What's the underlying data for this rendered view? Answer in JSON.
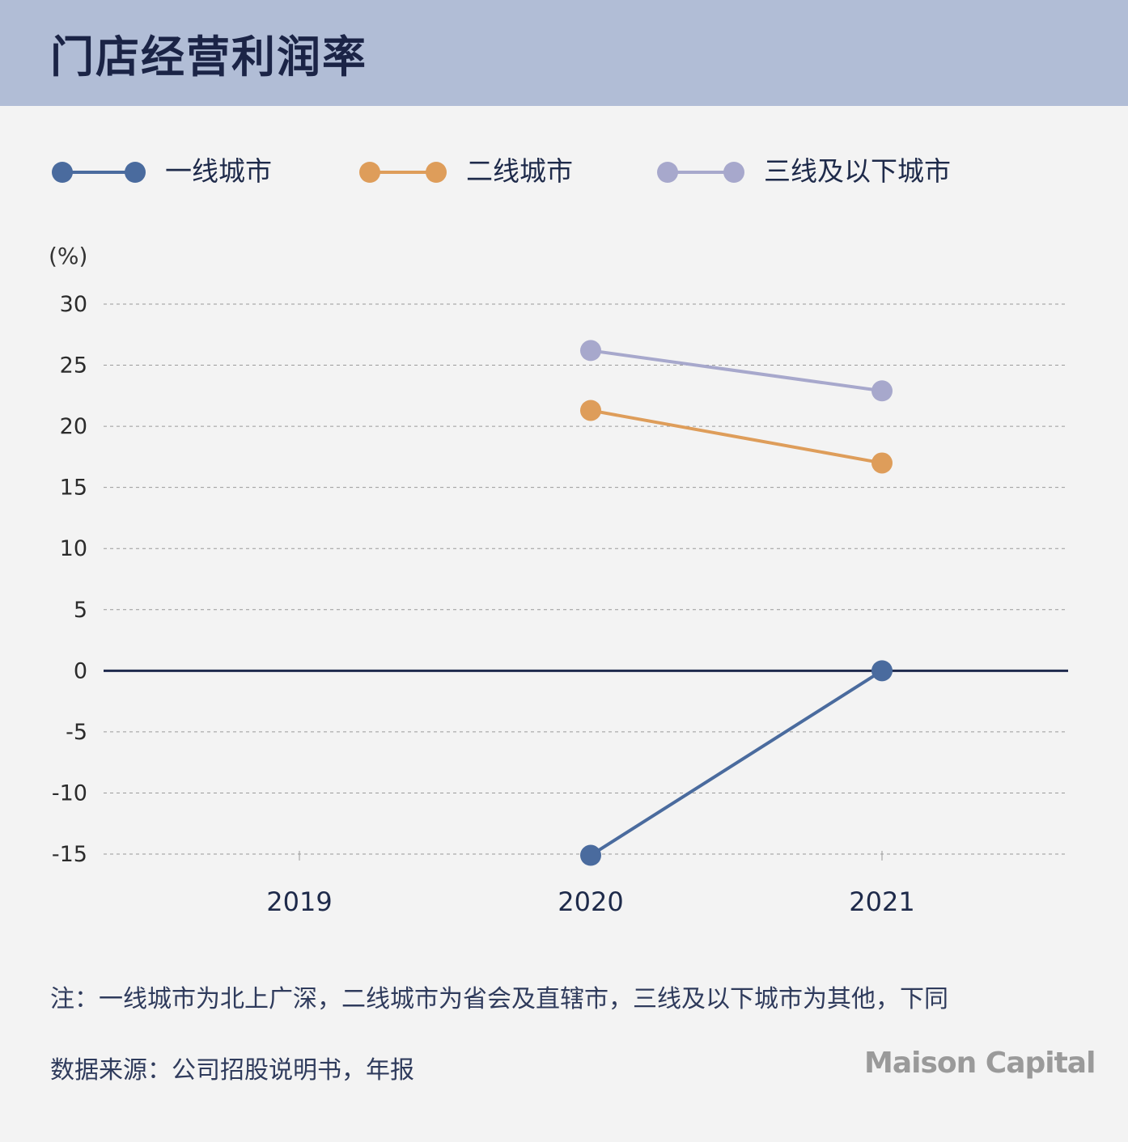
{
  "title": "门店经营利润率",
  "unit": "(%)",
  "note": "注：一线城市为北上广深，二线城市为省会及直辖市，三线及以下城市为其他，下同",
  "source": "数据来源：公司招股说明书，年报",
  "brand": "Maison Capital",
  "colors": {
    "header_bg": "#b1bdd6",
    "tier1": "#4a6b9e",
    "tier2": "#de9d5a",
    "tier3": "#a7a8cc",
    "zero_line": "#1f2a4d",
    "grid": "#9a9a9a"
  },
  "chart_data": {
    "type": "line",
    "x": [
      "2019",
      "2020",
      "2021"
    ],
    "ylim": [
      -15,
      30
    ],
    "yticks": [
      30,
      25,
      20,
      15,
      10,
      5,
      0,
      -5,
      -10,
      -15
    ],
    "grid": true,
    "legend_position": "top",
    "series": [
      {
        "name": "一线城市",
        "color": "#4a6b9e",
        "values": [
          null,
          -15.1,
          0.0
        ]
      },
      {
        "name": "二线城市",
        "color": "#de9d5a",
        "values": [
          null,
          21.3,
          17.0
        ]
      },
      {
        "name": "三线及以下城市",
        "color": "#a7a8cc",
        "values": [
          null,
          26.2,
          22.9
        ]
      }
    ]
  }
}
